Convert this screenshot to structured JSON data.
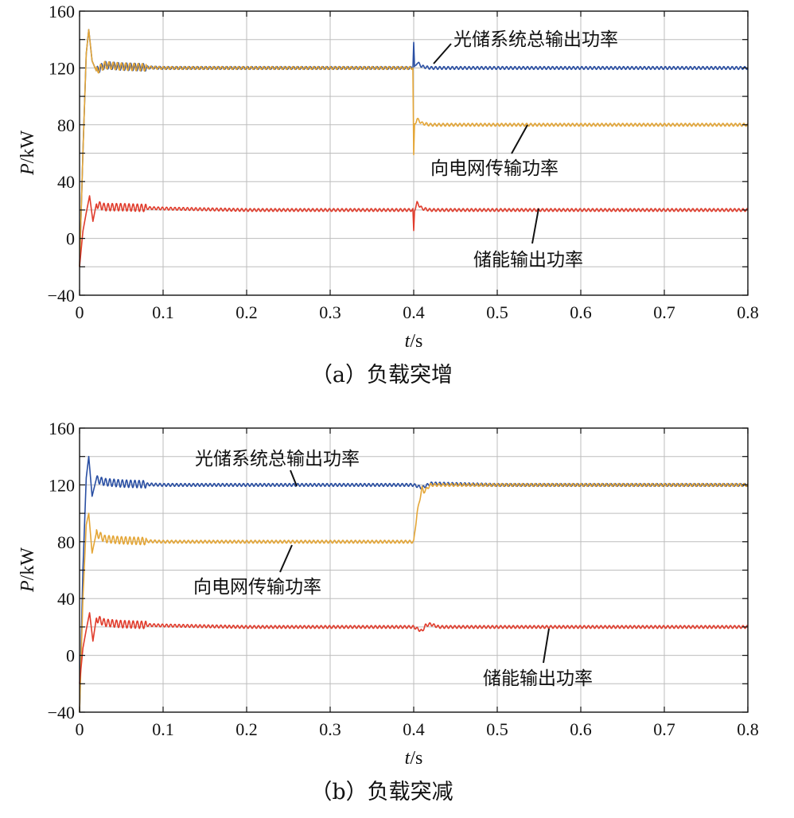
{
  "chart_data": [
    {
      "type": "line",
      "caption": "（a）负载突增",
      "xlabel_var": "t",
      "xlabel_unit": "/s",
      "ylabel_var": "P",
      "ylabel_unit": "/kW",
      "xlim": [
        0,
        0.8
      ],
      "ylim": [
        -40,
        160
      ],
      "xticks": [
        0,
        0.1,
        0.2,
        0.3,
        0.4,
        0.5,
        0.6,
        0.7,
        0.8
      ],
      "yticks": [
        -40,
        0,
        40,
        80,
        120,
        160
      ],
      "grid": true,
      "series": [
        {
          "name": "光储系统总输出功率",
          "color": "#2a4fa3",
          "x": [
            0,
            0.004,
            0.008,
            0.011,
            0.015,
            0.02,
            0.03,
            0.05,
            0.1,
            0.2,
            0.3,
            0.399,
            0.4,
            0.401,
            0.404,
            0.41,
            0.42,
            0.5,
            0.6,
            0.7,
            0.8
          ],
          "y": [
            -20,
            60,
            130,
            147,
            125,
            118,
            122,
            121,
            120,
            120,
            120,
            120,
            138,
            120,
            124,
            121,
            120,
            120,
            120,
            120,
            120
          ]
        },
        {
          "name": "向电网传输功率",
          "color": "#e4a637",
          "x": [
            0,
            0.004,
            0.008,
            0.011,
            0.015,
            0.02,
            0.03,
            0.05,
            0.1,
            0.2,
            0.3,
            0.399,
            0.4,
            0.401,
            0.404,
            0.41,
            0.42,
            0.5,
            0.6,
            0.7,
            0.8
          ],
          "y": [
            -20,
            60,
            130,
            147,
            125,
            118,
            122,
            121,
            120,
            120,
            120,
            120,
            58,
            80,
            84,
            81,
            80,
            80,
            80,
            80,
            80
          ]
        },
        {
          "name": "储能输出功率",
          "color": "#e03c2c",
          "x": [
            0,
            0.004,
            0.008,
            0.012,
            0.016,
            0.02,
            0.03,
            0.05,
            0.1,
            0.2,
            0.3,
            0.399,
            0.4,
            0.401,
            0.404,
            0.41,
            0.42,
            0.5,
            0.6,
            0.7,
            0.8
          ],
          "y": [
            -20,
            5,
            18,
            30,
            12,
            24,
            22,
            22,
            21,
            20,
            20,
            20,
            5,
            20,
            25,
            21,
            20,
            20,
            20,
            20,
            20
          ]
        }
      ],
      "annotations": [
        "光储系统总输出功率",
        "向电网传输功率",
        "储能输出功率"
      ]
    },
    {
      "type": "line",
      "caption": "（b）负载突减",
      "xlabel_var": "t",
      "xlabel_unit": "/s",
      "ylabel_var": "P",
      "ylabel_unit": "/kW",
      "xlim": [
        0,
        0.8
      ],
      "ylim": [
        -40,
        160
      ],
      "xticks": [
        0,
        0.1,
        0.2,
        0.3,
        0.4,
        0.5,
        0.6,
        0.7,
        0.8
      ],
      "yticks": [
        -40,
        0,
        40,
        80,
        120,
        160
      ],
      "grid": true,
      "series": [
        {
          "name": "光储系统总输出功率",
          "color": "#2a4fa3",
          "x": [
            0,
            0.004,
            0.008,
            0.011,
            0.015,
            0.02,
            0.03,
            0.05,
            0.1,
            0.2,
            0.3,
            0.4,
            0.41,
            0.42,
            0.5,
            0.6,
            0.7,
            0.8
          ],
          "y": [
            -40,
            60,
            125,
            140,
            112,
            124,
            122,
            121,
            120,
            120,
            120,
            120,
            118,
            121,
            120,
            120,
            120,
            120
          ]
        },
        {
          "name": "向电网传输功率",
          "color": "#e4a637",
          "x": [
            0,
            0.004,
            0.008,
            0.011,
            0.015,
            0.02,
            0.03,
            0.05,
            0.1,
            0.2,
            0.3,
            0.4,
            0.404,
            0.41,
            0.412,
            0.42,
            0.5,
            0.6,
            0.7,
            0.8
          ],
          "y": [
            -40,
            40,
            92,
            100,
            72,
            86,
            82,
            81,
            80,
            80,
            80,
            80,
            100,
            118,
            115,
            120,
            120,
            120,
            120,
            120
          ]
        },
        {
          "name": "储能输出功率",
          "color": "#e03c2c",
          "x": [
            0,
            0.004,
            0.008,
            0.012,
            0.016,
            0.02,
            0.03,
            0.05,
            0.1,
            0.2,
            0.3,
            0.4,
            0.41,
            0.414,
            0.42,
            0.43,
            0.5,
            0.6,
            0.7,
            0.8
          ],
          "y": [
            -20,
            5,
            18,
            30,
            10,
            26,
            23,
            22,
            21,
            20,
            20,
            20,
            17,
            21,
            22,
            20,
            20,
            20,
            20,
            20
          ]
        }
      ],
      "annotations": [
        "光储系统总输出功率",
        "向电网传输功率",
        "储能输出功率"
      ]
    }
  ]
}
